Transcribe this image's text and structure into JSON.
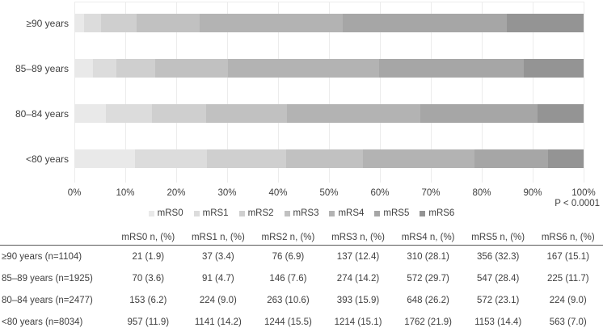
{
  "chart_data": {
    "type": "bar",
    "orientation": "horizontal",
    "stacked": true,
    "title": "",
    "xlabel": "",
    "ylabel": "",
    "xlim": [
      0,
      100
    ],
    "grid": "vertical",
    "legend_position": "bottom-center",
    "categories": [
      "≥90 years",
      "85–89 years",
      "80–84 years",
      "<80 years"
    ],
    "series": [
      {
        "name": "mRS0",
        "color": "#e9e9e9",
        "values": [
          1.9,
          3.6,
          6.2,
          11.9
        ]
      },
      {
        "name": "mRS1",
        "color": "#dcdcdc",
        "values": [
          3.4,
          4.7,
          9.0,
          14.2
        ]
      },
      {
        "name": "mRS2",
        "color": "#cfcfcf",
        "values": [
          6.9,
          7.6,
          10.6,
          15.5
        ]
      },
      {
        "name": "mRS3",
        "color": "#c1c1c1",
        "values": [
          12.4,
          14.2,
          15.9,
          15.1
        ]
      },
      {
        "name": "mRS4",
        "color": "#b3b3b3",
        "values": [
          28.1,
          29.7,
          26.2,
          21.9
        ]
      },
      {
        "name": "mRS5",
        "color": "#a6a6a6",
        "values": [
          32.3,
          28.4,
          23.1,
          14.4
        ]
      },
      {
        "name": "mRS6",
        "color": "#949494",
        "values": [
          15.1,
          11.7,
          9.0,
          7.0
        ]
      }
    ],
    "x_ticks": [
      "0%",
      "10%",
      "20%",
      "30%",
      "40%",
      "50%",
      "60%",
      "70%",
      "80%",
      "90%",
      "100%"
    ],
    "p_value": "P < 0.0001"
  },
  "table": {
    "headers": [
      "mRS0 n, (%)",
      "mRS1 n, (%)",
      "mRS2 n, (%)",
      "mRS3 n, (%)",
      "mRS4 n, (%)",
      "mRS5 n, (%)",
      "mRS6 n, (%)"
    ],
    "rows": [
      {
        "label": "≥90 years (n=1104)",
        "values": [
          "21 (1.9)",
          "37 (3.4)",
          "76 (6.9)",
          "137 (12.4)",
          "310 (28.1)",
          "356 (32.3)",
          "167 (15.1)"
        ]
      },
      {
        "label": "85–89 years (n=1925)",
        "values": [
          "70 (3.6)",
          "91 (4.7)",
          "146 (7.6)",
          "274 (14.2)",
          "572 (29.7)",
          "547 (28.4)",
          "225 (11.7)"
        ]
      },
      {
        "label": "80–84 years (n=2477)",
        "values": [
          "153 (6.2)",
          "224 (9.0)",
          "263 (10.6)",
          "393 (15.9)",
          "648 (26.2)",
          "572 (23.1)",
          "224 (9.0)"
        ]
      },
      {
        "label": "<80 years (n=8034)",
        "values": [
          "957 (11.9)",
          "1141 (14.2)",
          "1244 (15.5)",
          "1214 (15.1)",
          "1762 (21.9)",
          "1153 (14.4)",
          "563 (7.0)"
        ]
      }
    ]
  }
}
